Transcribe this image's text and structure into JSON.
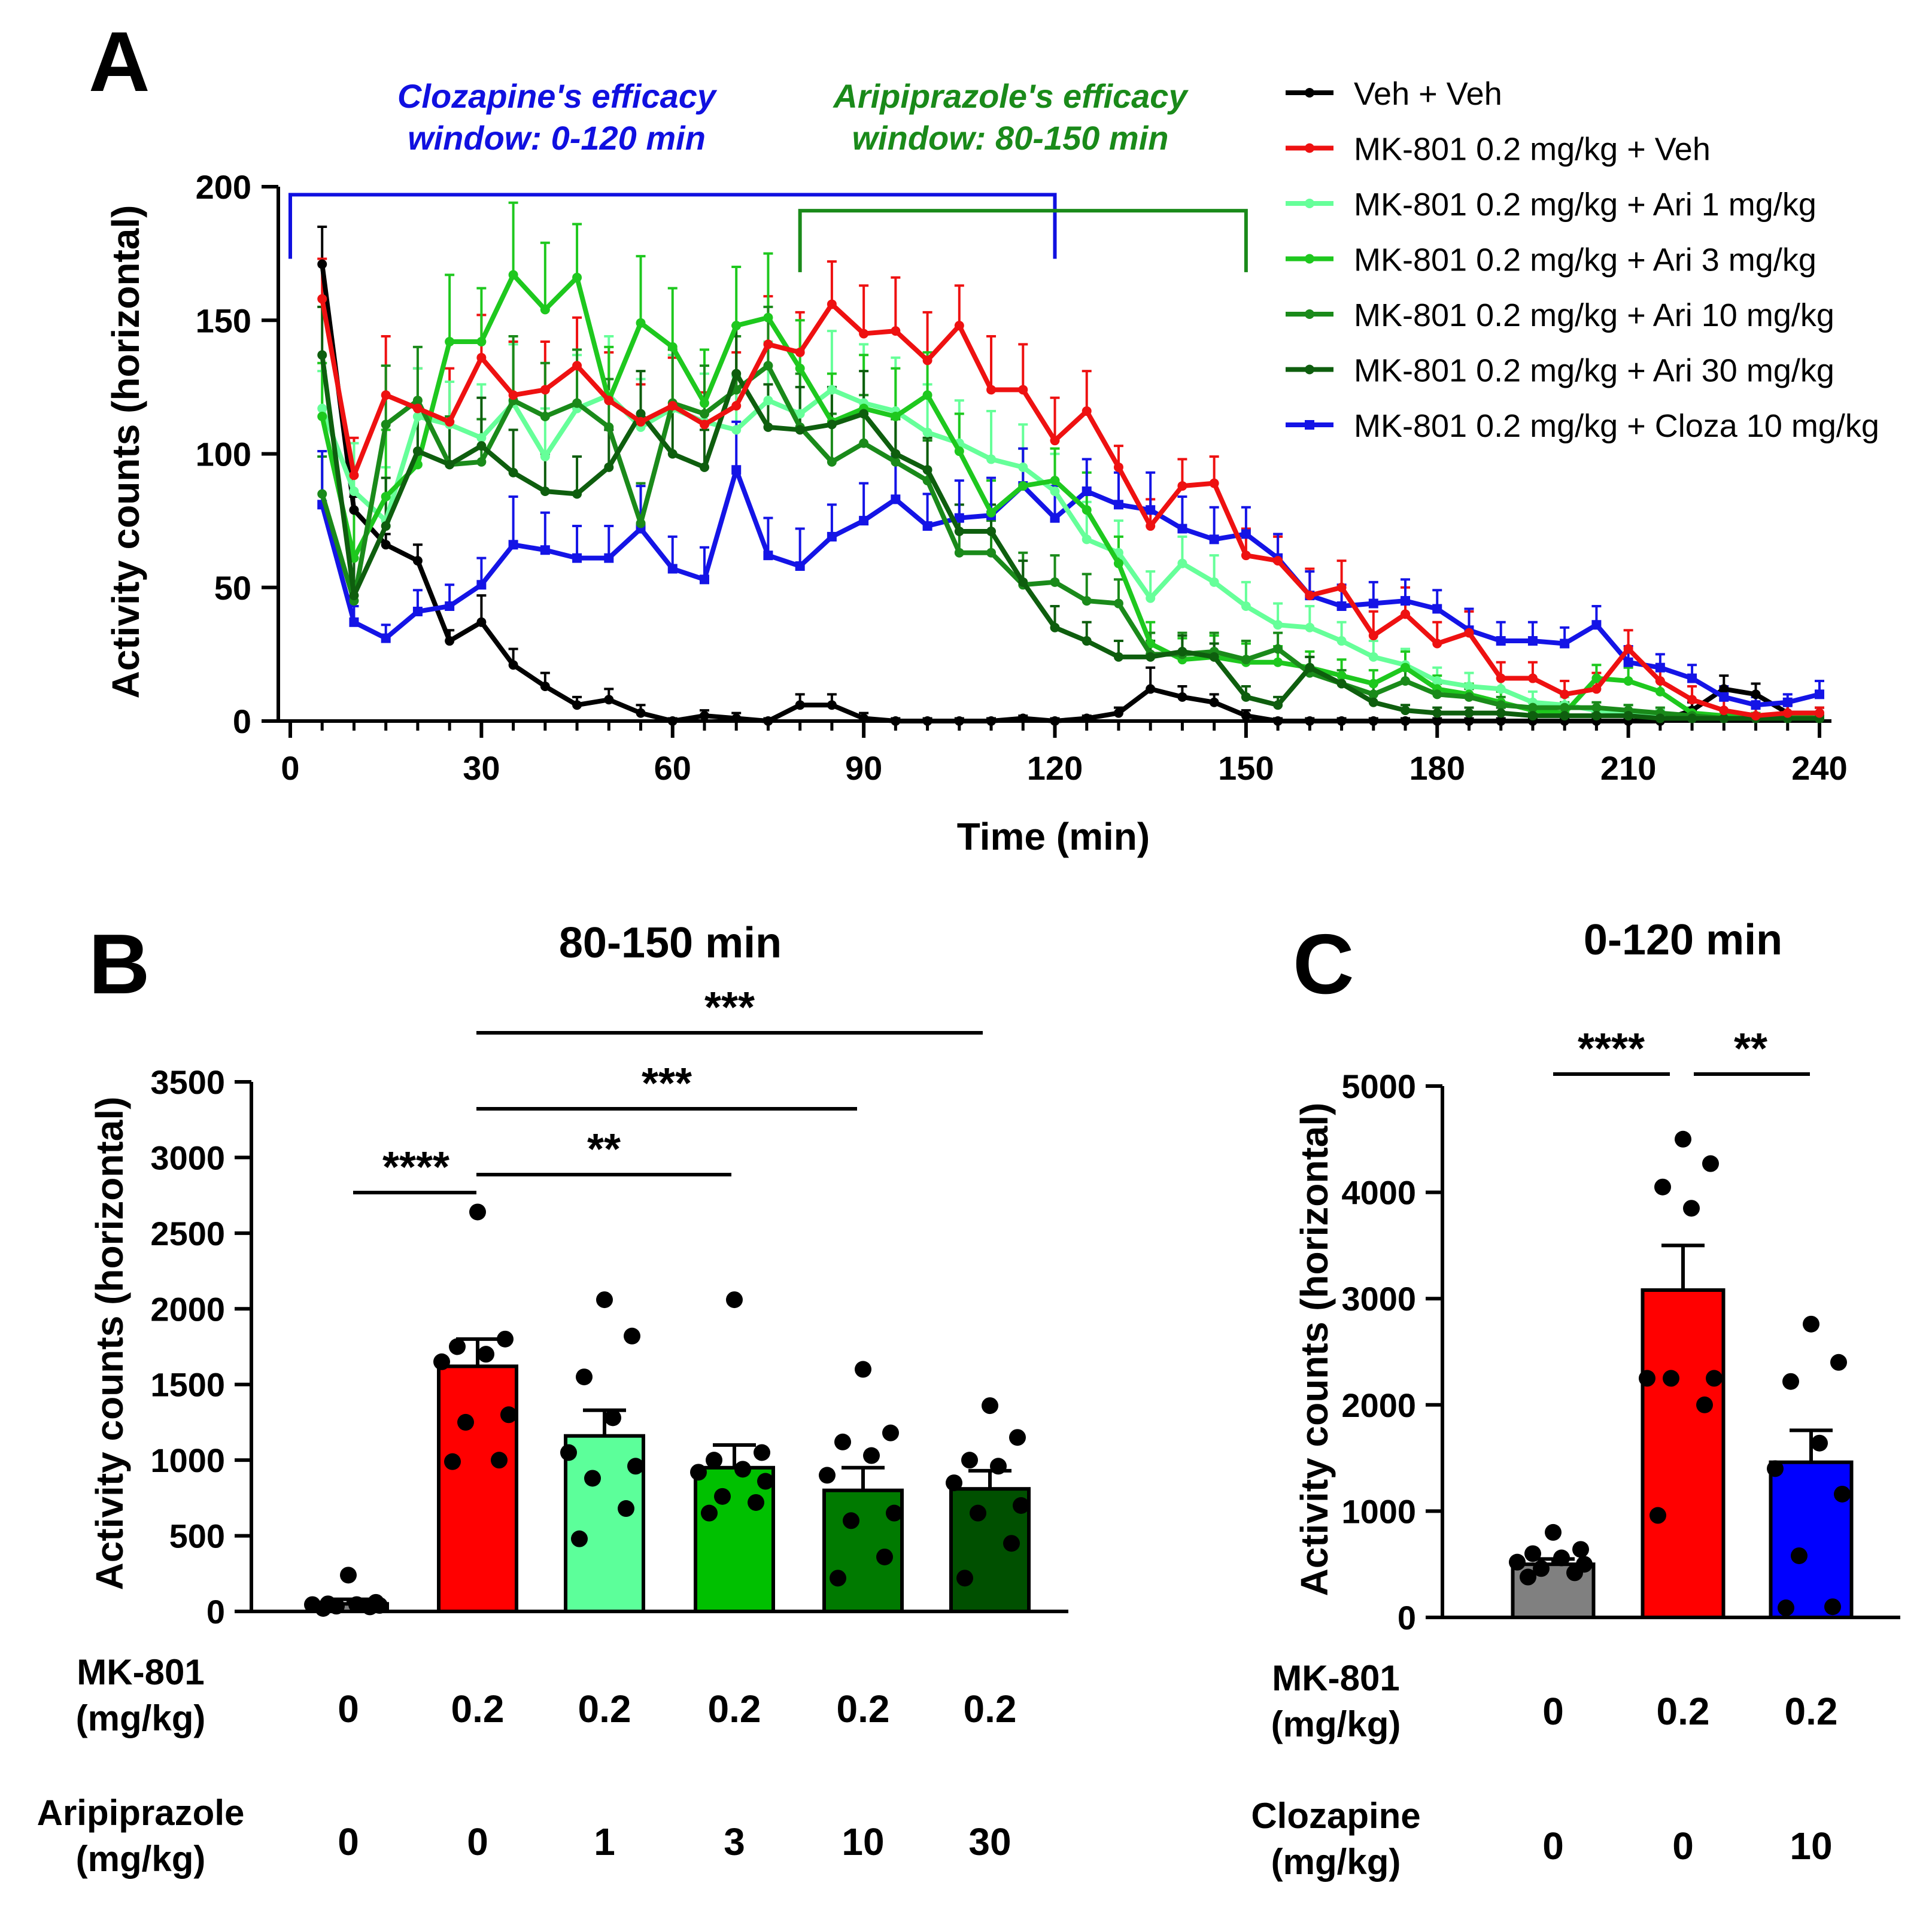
{
  "figure": {
    "panelA": {
      "label": "A",
      "annotation_clozapine": [
        "Clozapine's efficacy",
        "window: 0-120 min"
      ],
      "annotation_aripiprazole": [
        "Aripiprazole's efficacy",
        "window: 80-150 min"
      ],
      "annotation_colors": {
        "clozapine": "#1010e0",
        "aripiprazole": "#1a8a1a"
      }
    },
    "panelB": {
      "label": "B"
    },
    "panelC": {
      "label": "C"
    }
  },
  "chart_data": [
    {
      "type": "line",
      "title": "",
      "xlabel": "Time (min)",
      "ylabel": "Activity counts (horizontal)",
      "xlim": [
        0,
        240
      ],
      "ylim": [
        0,
        200
      ],
      "xticks": [
        "0",
        "30",
        "60",
        "90",
        "120",
        "150",
        "180",
        "210",
        "240"
      ],
      "yticks": [
        "0",
        "50",
        "100",
        "150",
        "200"
      ],
      "windows": [
        {
          "name": "Clozapine's efficacy window",
          "start": 0,
          "end": 120
        },
        {
          "name": "Aripiprazole's efficacy window",
          "start": 80,
          "end": 150
        }
      ],
      "x": [
        5,
        10,
        15,
        20,
        25,
        30,
        35,
        40,
        45,
        50,
        55,
        60,
        65,
        70,
        75,
        80,
        85,
        90,
        95,
        100,
        105,
        110,
        115,
        120,
        125,
        130,
        135,
        140,
        145,
        150,
        155,
        160,
        165,
        170,
        175,
        180,
        185,
        190,
        195,
        200,
        205,
        210,
        215,
        220,
        225,
        230,
        235,
        240
      ],
      "series": [
        {
          "name": "Veh + Veh",
          "color": "#000000",
          "marker": "circle",
          "values": [
            171,
            79,
            66,
            60,
            30,
            37,
            21,
            13,
            6,
            8,
            3,
            0,
            2,
            1,
            0,
            6,
            6,
            1,
            0,
            0,
            0,
            0,
            1,
            0,
            1,
            3,
            12,
            9,
            7,
            2,
            0,
            0,
            0,
            0,
            0,
            0,
            0,
            0,
            0,
            0,
            0,
            0,
            0,
            4,
            12,
            10,
            3,
            3
          ],
          "err": [
            14,
            5,
            4,
            6,
            4,
            10,
            6,
            5,
            3,
            4,
            3,
            1,
            2,
            2,
            1,
            4,
            4,
            2,
            1,
            1,
            1,
            1,
            1,
            1,
            1,
            2,
            8,
            4,
            3,
            2,
            1,
            1,
            1,
            1,
            1,
            1,
            1,
            1,
            1,
            1,
            1,
            1,
            1,
            3,
            5,
            4,
            3,
            2
          ]
        },
        {
          "name": "MK-801 0.2 mg/kg + Veh",
          "color": "#ee1111",
          "marker": "circle",
          "values": [
            158,
            92,
            122,
            117,
            112,
            136,
            122,
            124,
            133,
            120,
            112,
            118,
            111,
            118,
            141,
            138,
            156,
            145,
            146,
            135,
            148,
            124,
            124,
            105,
            116,
            95,
            73,
            88,
            89,
            62,
            60,
            47,
            50,
            32,
            40,
            29,
            33,
            16,
            16,
            10,
            12,
            27,
            15,
            8,
            4,
            2,
            3,
            3
          ],
          "err": [
            15,
            14,
            22,
            15,
            20,
            16,
            20,
            18,
            18,
            18,
            14,
            18,
            12,
            20,
            18,
            15,
            16,
            18,
            20,
            18,
            15,
            20,
            17,
            16,
            15,
            8,
            10,
            10,
            10,
            10,
            9,
            10,
            10,
            9,
            10,
            8,
            8,
            6,
            6,
            5,
            6,
            7,
            5,
            5,
            4,
            3,
            3,
            2
          ]
        },
        {
          "name": "MK-801 0.2 mg/kg + Ari 1 mg/kg",
          "color": "#66ff99",
          "marker": "circle",
          "values": [
            117,
            86,
            75,
            114,
            111,
            106,
            119,
            99,
            117,
            122,
            110,
            117,
            112,
            109,
            120,
            115,
            124,
            119,
            116,
            108,
            104,
            98,
            95,
            86,
            68,
            63,
            46,
            59,
            52,
            43,
            36,
            35,
            30,
            24,
            21,
            15,
            13,
            12,
            7,
            6,
            4,
            3,
            2,
            1,
            1,
            1,
            1,
            1
          ],
          "err": [
            14,
            18,
            20,
            18,
            16,
            20,
            22,
            18,
            20,
            22,
            18,
            20,
            18,
            20,
            22,
            24,
            22,
            22,
            20,
            18,
            16,
            18,
            16,
            14,
            14,
            12,
            10,
            10,
            10,
            9,
            8,
            8,
            7,
            6,
            6,
            5,
            5,
            4,
            4,
            3,
            3,
            3,
            2,
            2,
            1,
            1,
            1,
            1
          ]
        },
        {
          "name": "MK-801 0.2 mg/kg + Ari 3 mg/kg",
          "color": "#1ec81e",
          "marker": "circle",
          "values": [
            114,
            61,
            84,
            96,
            142,
            142,
            167,
            154,
            166,
            120,
            149,
            140,
            119,
            148,
            151,
            132,
            112,
            117,
            114,
            122,
            101,
            78,
            88,
            90,
            79,
            59,
            29,
            23,
            24,
            22,
            22,
            20,
            17,
            14,
            20,
            12,
            10,
            7,
            4,
            3,
            16,
            15,
            11,
            3,
            2,
            2,
            2,
            1
          ],
          "err": [
            20,
            18,
            25,
            22,
            25,
            20,
            27,
            25,
            20,
            20,
            25,
            22,
            20,
            22,
            24,
            18,
            18,
            20,
            18,
            16,
            14,
            12,
            14,
            12,
            14,
            10,
            8,
            8,
            8,
            7,
            6,
            6,
            6,
            5,
            6,
            5,
            4,
            4,
            3,
            3,
            5,
            5,
            4,
            2,
            2,
            1,
            1,
            1
          ]
        },
        {
          "name": "MK-801 0.2 mg/kg + Ari 10 mg/kg",
          "color": "#1a8a1a",
          "marker": "circle",
          "values": [
            85,
            45,
            111,
            120,
            96,
            97,
            120,
            114,
            119,
            110,
            74,
            119,
            115,
            124,
            133,
            110,
            97,
            104,
            97,
            90,
            63,
            63,
            51,
            52,
            45,
            44,
            25,
            25,
            26,
            23,
            27,
            18,
            14,
            10,
            15,
            10,
            9,
            6,
            5,
            5,
            5,
            4,
            3,
            2,
            1,
            1,
            1,
            1
          ],
          "err": [
            14,
            16,
            22,
            20,
            18,
            16,
            24,
            20,
            20,
            18,
            15,
            20,
            18,
            20,
            22,
            20,
            18,
            18,
            16,
            15,
            12,
            12,
            12,
            10,
            10,
            9,
            8,
            8,
            7,
            7,
            6,
            6,
            5,
            4,
            5,
            4,
            3,
            3,
            2,
            2,
            2,
            2,
            2,
            1,
            1,
            1,
            1,
            1
          ]
        },
        {
          "name": "MK-801 0.2 mg/kg + Ari 30 mg/kg",
          "color": "#0e5e0e",
          "marker": "circle",
          "values": [
            137,
            47,
            73,
            101,
            96,
            103,
            93,
            86,
            85,
            95,
            115,
            100,
            95,
            130,
            110,
            109,
            111,
            115,
            100,
            94,
            71,
            71,
            52,
            35,
            30,
            24,
            24,
            26,
            24,
            9,
            6,
            20,
            14,
            7,
            4,
            3,
            3,
            3,
            2,
            2,
            2,
            2,
            1,
            1,
            1,
            1,
            1,
            1
          ],
          "err": [
            18,
            14,
            18,
            16,
            16,
            18,
            16,
            14,
            14,
            14,
            16,
            16,
            14,
            18,
            16,
            16,
            14,
            16,
            14,
            12,
            10,
            10,
            8,
            8,
            7,
            6,
            6,
            6,
            5,
            4,
            3,
            4,
            3,
            3,
            2,
            2,
            2,
            2,
            1,
            1,
            1,
            1,
            1,
            1,
            1,
            1,
            1,
            1
          ]
        },
        {
          "name": "MK-801 0.2 mg/kg + Cloza 10 mg/kg",
          "color": "#1414e6",
          "marker": "square",
          "values": [
            81,
            37,
            31,
            41,
            43,
            51,
            66,
            64,
            61,
            61,
            72,
            57,
            53,
            94,
            62,
            58,
            69,
            75,
            83,
            73,
            76,
            77,
            88,
            76,
            86,
            81,
            79,
            72,
            68,
            70,
            61,
            47,
            43,
            44,
            45,
            42,
            34,
            30,
            30,
            29,
            36,
            22,
            20,
            16,
            9,
            6,
            7,
            10
          ],
          "err": [
            20,
            6,
            5,
            8,
            8,
            10,
            18,
            14,
            12,
            12,
            16,
            12,
            12,
            18,
            14,
            14,
            12,
            14,
            16,
            12,
            14,
            14,
            14,
            12,
            12,
            12,
            14,
            12,
            12,
            10,
            9,
            9,
            8,
            8,
            8,
            7,
            8,
            7,
            7,
            6,
            7,
            6,
            5,
            5,
            4,
            3,
            3,
            5
          ]
        }
      ]
    },
    {
      "type": "bar",
      "title": "80-150 min",
      "ylabel": "Activity counts (horizontal)",
      "ylim": [
        0,
        3500
      ],
      "yticks": [
        "0",
        "500",
        "1000",
        "1500",
        "2000",
        "2500",
        "3000",
        "3500"
      ],
      "row1_label": [
        "MK-801",
        "(mg/kg)"
      ],
      "row2_label": [
        "Aripiprazole",
        "(mg/kg)"
      ],
      "categories_mk801": [
        "0",
        "0.2",
        "0.2",
        "0.2",
        "0.2",
        "0.2"
      ],
      "categories_drug": [
        "0",
        "0",
        "1",
        "3",
        "10",
        "30"
      ],
      "colors": [
        "#808080",
        "#ff0000",
        "#5cff9a",
        "#00c000",
        "#007a00",
        "#005000"
      ],
      "values": [
        50,
        1620,
        1160,
        950,
        800,
        810
      ],
      "sem": [
        30,
        180,
        170,
        150,
        150,
        120
      ],
      "points": [
        [
          20,
          30,
          35,
          40,
          45,
          45,
          50,
          60,
          240
        ],
        [
          990,
          1000,
          1250,
          1300,
          1650,
          1700,
          1750,
          1800,
          2640
        ],
        [
          480,
          680,
          880,
          960,
          1050,
          1280,
          1550,
          1820,
          2060
        ],
        [
          650,
          720,
          760,
          860,
          920,
          940,
          1000,
          1050,
          2060
        ],
        [
          220,
          360,
          600,
          650,
          900,
          1030,
          1120,
          1180,
          1600
        ],
        [
          220,
          450,
          650,
          700,
          850,
          960,
          1000,
          1150,
          1360
        ]
      ],
      "significance": [
        {
          "pair": [
            0,
            1
          ],
          "label": "****"
        },
        {
          "pair": [
            1,
            3
          ],
          "label": "**"
        },
        {
          "pair": [
            1,
            4
          ],
          "label": "***"
        },
        {
          "pair": [
            1,
            5
          ],
          "label": "***"
        }
      ]
    },
    {
      "type": "bar",
      "title": "0-120 min",
      "ylabel": "Activity counts (horizontal)",
      "ylim": [
        0,
        5000
      ],
      "yticks": [
        "0",
        "1000",
        "2000",
        "3000",
        "4000",
        "5000"
      ],
      "row1_label": [
        "MK-801",
        "(mg/kg)"
      ],
      "row2_label": [
        "Clozapine",
        "(mg/kg)"
      ],
      "categories_mk801": [
        "0",
        "0.2",
        "0.2"
      ],
      "categories_drug": [
        "0",
        "0",
        "10"
      ],
      "colors": [
        "#808080",
        "#ff0000",
        "#0000ff"
      ],
      "values": [
        500,
        3080,
        1460
      ],
      "sem": [
        50,
        420,
        300
      ],
      "points": [
        [
          380,
          420,
          460,
          500,
          520,
          560,
          600,
          640,
          800
        ],
        [
          960,
          2000,
          2250,
          2250,
          2250,
          3850,
          4050,
          4270,
          4500
        ],
        [
          90,
          100,
          580,
          1160,
          1400,
          1640,
          2220,
          2400,
          2760
        ]
      ],
      "significance": [
        {
          "pair": [
            0,
            1
          ],
          "label": "****"
        },
        {
          "pair": [
            1,
            2
          ],
          "label": "**"
        }
      ]
    }
  ]
}
